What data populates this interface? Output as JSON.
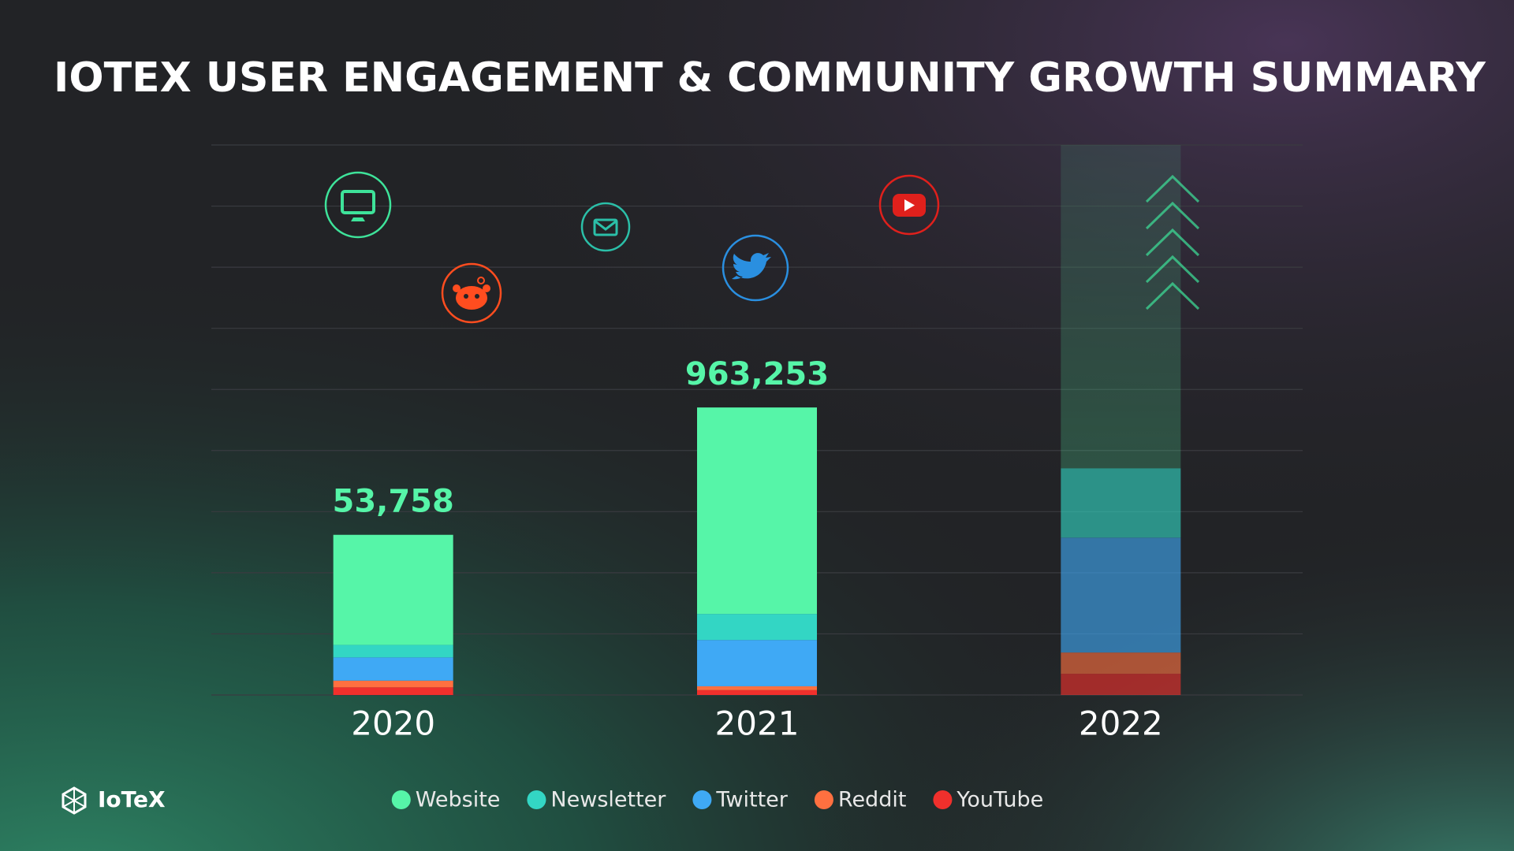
{
  "chart_data": {
    "type": "stacked_bar",
    "title": "IOTEX USER ENGAGEMENT & COMMUNITY GROWTH SUMMARY",
    "brand": "IoTeX",
    "categories": [
      "2020",
      "2021",
      "2022"
    ],
    "series": [
      {
        "name": "Website",
        "color": "#56f5a8",
        "values": [
          36938,
          691653,
          217000000
        ]
      },
      {
        "name": "Newsletter",
        "color": "#33d6c4",
        "values": [
          4200,
          87300,
          46500000
        ]
      },
      {
        "name": "Twitter",
        "color": "#3fa9f5",
        "values": [
          7800,
          155100,
          77100000
        ]
      },
      {
        "name": "Reddit",
        "color": "#ff7040",
        "values": [
          2250,
          12900,
          14250000
        ]
      },
      {
        "name": "YouTube",
        "color": "#f0302c",
        "values": [
          2570,
          16300,
          14250000
        ]
      }
    ],
    "totals": [
      53758,
      963253,
      null
    ],
    "total_labels": [
      "53,758",
      "963,253",
      null
    ],
    "total_color": "#56f5a8",
    "scale": "log",
    "ylim": [
      1426,
      369000000
    ],
    "grid": true
  }
}
